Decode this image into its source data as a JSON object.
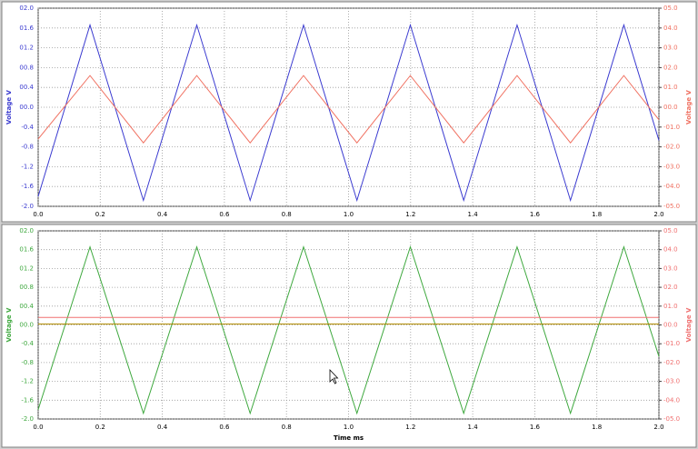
{
  "chart_data": [
    {
      "type": "line",
      "ylabel": "Voltage V",
      "y2label": "Voltage V",
      "xlim": [
        0,
        2
      ],
      "xticks": [
        {
          "value": 0,
          "label": "0.0"
        },
        0.2,
        0.4,
        0.6,
        0.8,
        {
          "value": 1,
          "label": "1.0"
        },
        1.2,
        1.4,
        1.6,
        1.8,
        {
          "value": 2,
          "label": "2.0"
        }
      ],
      "ylim": [
        -2,
        2
      ],
      "yticks": [
        {
          "value": 2,
          "label": "02.0"
        },
        {
          "value": 1.6,
          "label": "01.6"
        },
        {
          "value": 1.2,
          "label": "01.2"
        },
        {
          "value": 0.8,
          "label": "00.8"
        },
        {
          "value": 0.4,
          "label": "00.4"
        },
        {
          "value": 0,
          "label": "00.0"
        },
        {
          "value": -0.4,
          "label": "-0.4"
        },
        {
          "value": -0.8,
          "label": "-0.8"
        },
        {
          "value": -1.2,
          "label": "-1.2"
        },
        {
          "value": -1.6,
          "label": "-1.6"
        },
        {
          "value": -2,
          "label": "-2.0"
        }
      ],
      "y2lim": [
        -5,
        5
      ],
      "y2ticks": [
        {
          "value": 5,
          "label": "05.0"
        },
        {
          "value": 4,
          "label": "04.0"
        },
        {
          "value": 3,
          "label": "03.0"
        },
        {
          "value": 2,
          "label": "02.0"
        },
        {
          "value": 1,
          "label": "01.0"
        },
        {
          "value": 0,
          "label": "00.0"
        },
        {
          "value": -1,
          "label": "-01.0"
        },
        {
          "value": -2,
          "label": "-02.0"
        },
        {
          "value": -3,
          "label": "-03.0"
        },
        {
          "value": -4,
          "label": "-04.0"
        },
        {
          "value": -5,
          "label": "-05.0"
        }
      ],
      "grid": true,
      "series": [
        {
          "color": "#3a3ad0",
          "x": [
            0,
            0.167,
            0.339,
            0.511,
            0.683,
            0.855,
            1.027,
            1.199,
            1.371,
            1.543,
            1.715,
            1.887,
            2.0
          ],
          "values": [
            -1.8,
            1.66,
            -1.88,
            1.66,
            -1.88,
            1.66,
            -1.88,
            1.66,
            -1.88,
            1.66,
            -1.88,
            1.66,
            -0.67
          ]
        },
        {
          "color": "#f07060",
          "axis": "y2",
          "x": [
            0,
            0.167,
            0.339,
            0.511,
            0.683,
            0.855,
            1.027,
            1.199,
            1.371,
            1.543,
            1.715,
            1.887,
            2.0
          ],
          "values": [
            -1.6,
            1.6,
            -1.8,
            1.6,
            -1.8,
            1.6,
            -1.8,
            1.6,
            -1.8,
            1.6,
            -1.8,
            1.6,
            -0.63
          ]
        }
      ]
    },
    {
      "type": "line",
      "ylabel": "Voltage V",
      "y2label": "Voltage V",
      "xlabel": "Time  ms",
      "xlim": [
        0,
        2
      ],
      "xticks": [
        {
          "value": 0,
          "label": "0.0"
        },
        0.2,
        0.4,
        0.6,
        0.8,
        {
          "value": 1,
          "label": "1.0"
        },
        1.2,
        1.4,
        1.6,
        1.8,
        {
          "value": 2,
          "label": "2.0"
        }
      ],
      "ylim": [
        -2,
        2
      ],
      "yticks": [
        {
          "value": 2,
          "label": "02.0"
        },
        {
          "value": 1.6,
          "label": "01.6"
        },
        {
          "value": 1.2,
          "label": "01.2"
        },
        {
          "value": 0.8,
          "label": "00.8"
        },
        {
          "value": 0.4,
          "label": "00.4"
        },
        {
          "value": 0,
          "label": "00.0"
        },
        {
          "value": -0.4,
          "label": "-0.4"
        },
        {
          "value": -0.8,
          "label": "-0.8"
        },
        {
          "value": -1.2,
          "label": "-1.2"
        },
        {
          "value": -1.6,
          "label": "-1.6"
        },
        {
          "value": -2,
          "label": "-2.0"
        }
      ],
      "y2lim": [
        -5,
        5
      ],
      "y2ticks": [
        {
          "value": 5,
          "label": "05.0"
        },
        {
          "value": 4,
          "label": "04.0"
        },
        {
          "value": 3,
          "label": "03.0"
        },
        {
          "value": 2,
          "label": "02.0"
        },
        {
          "value": 1,
          "label": "01.0"
        },
        {
          "value": 0,
          "label": "00.0"
        },
        {
          "value": -1,
          "label": "-01.0"
        },
        {
          "value": -2,
          "label": "-02.0"
        },
        {
          "value": -3,
          "label": "-03.0"
        },
        {
          "value": -4,
          "label": "-04.0"
        },
        {
          "value": -5,
          "label": "-05.0"
        }
      ],
      "grid": true,
      "series": [
        {
          "color": "#3ea83e",
          "x": [
            0,
            0.167,
            0.339,
            0.511,
            0.683,
            0.855,
            1.027,
            1.199,
            1.371,
            1.543,
            1.715,
            1.887,
            2.0
          ],
          "values": [
            -1.8,
            1.66,
            -1.88,
            1.66,
            -1.88,
            1.66,
            -1.88,
            1.66,
            -1.88,
            1.66,
            -1.88,
            1.66,
            -0.67
          ]
        },
        {
          "color": "#f07070",
          "axis": "y2",
          "x": [
            0,
            2
          ],
          "values": [
            0.4,
            0.4
          ]
        },
        {
          "color": "#b08a00",
          "x": [
            0,
            2
          ],
          "values": [
            0.02,
            0.02
          ]
        }
      ]
    }
  ]
}
